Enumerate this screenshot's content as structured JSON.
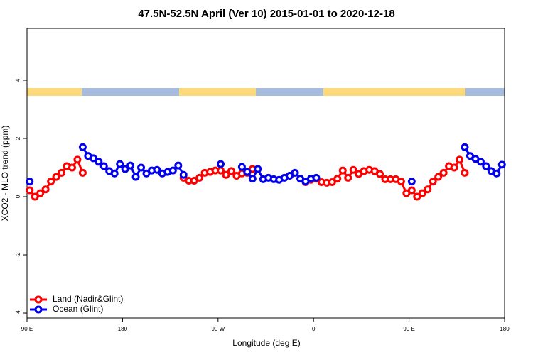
{
  "chart_data": {
    "type": "line",
    "title": "47.5N-52.5N April (Ver 10)   2015-01-01 to 2020-12-18",
    "xlabel": "Longitude (deg E)",
    "ylabel": "XCO2 - MLO trend (ppm)",
    "x": [
      92.5,
      97.5,
      102.5,
      107.5,
      112.5,
      117.5,
      122.5,
      127.5,
      132.5,
      137.5,
      142.5,
      147.5,
      152.5,
      157.5,
      162.5,
      167.5,
      172.5,
      177.5,
      182.5,
      187.5,
      192.5,
      197.5,
      202.5,
      207.5,
      212.5,
      217.5,
      222.5,
      227.5,
      232.5,
      237.5,
      242.5,
      247.5,
      252.5,
      257.5,
      262.5,
      267.5,
      272.5,
      277.5,
      282.5,
      287.5,
      292.5,
      297.5,
      302.5,
      307.5,
      312.5,
      317.5,
      322.5,
      327.5,
      332.5,
      337.5,
      342.5,
      347.5,
      352.5,
      357.5,
      362.5,
      367.5,
      372.5,
      377.5,
      382.5,
      387.5,
      392.5,
      397.5,
      402.5,
      407.5,
      412.5,
      417.5,
      422.5,
      427.5,
      432.5,
      437.5,
      442.5,
      447.5,
      452.5,
      457.5,
      462.5,
      467.5,
      472.5,
      477.5,
      482.5,
      487.5,
      492.5,
      497.5,
      502.5,
      507.5,
      512.5,
      517.5,
      522.5,
      527.5,
      532.5,
      537.5
    ],
    "series": [
      {
        "name": "Land (Nadir&Glint)",
        "color": "#ff0000",
        "values": [
          0.22,
          0.0,
          0.12,
          0.25,
          0.52,
          0.68,
          0.82,
          1.05,
          1.0,
          1.27,
          0.82,
          null,
          null,
          null,
          null,
          null,
          null,
          null,
          null,
          null,
          null,
          null,
          null,
          null,
          null,
          null,
          null,
          null,
          null,
          0.65,
          0.55,
          0.55,
          0.65,
          0.82,
          0.85,
          0.9,
          0.9,
          0.75,
          0.88,
          0.72,
          0.8,
          0.82,
          0.95,
          null,
          null,
          null,
          null,
          null,
          null,
          null,
          null,
          null,
          0.5,
          0.58,
          0.62,
          0.5,
          0.48,
          0.5,
          0.62,
          0.9,
          0.65,
          0.92,
          0.78,
          0.88,
          0.92,
          0.88,
          0.78,
          0.6,
          0.6,
          0.6,
          0.52,
          0.12,
          0.22,
          0.0,
          0.12,
          0.25,
          0.52,
          0.68,
          0.82,
          1.05,
          1.0,
          1.27,
          0.82,
          null,
          null,
          null,
          null,
          null,
          null,
          null
        ]
      },
      {
        "name": "Ocean (Glint)",
        "color": "#0000ee",
        "values": [
          0.52,
          null,
          null,
          null,
          null,
          null,
          null,
          null,
          null,
          null,
          1.7,
          1.4,
          1.32,
          1.2,
          1.05,
          0.88,
          0.8,
          1.12,
          0.95,
          1.07,
          0.68,
          1.0,
          0.8,
          0.9,
          0.92,
          0.8,
          0.85,
          0.9,
          1.07,
          0.75,
          null,
          null,
          null,
          null,
          null,
          null,
          1.12,
          null,
          null,
          null,
          1.02,
          0.85,
          0.62,
          0.95,
          0.6,
          0.65,
          0.6,
          0.58,
          0.65,
          0.72,
          0.82,
          0.62,
          0.52,
          0.62,
          0.65,
          null,
          null,
          null,
          null,
          null,
          null,
          null,
          null,
          null,
          null,
          null,
          null,
          null,
          null,
          null,
          null,
          null,
          0.52,
          null,
          null,
          null,
          null,
          null,
          null,
          null,
          null,
          null,
          1.7,
          1.4,
          1.3,
          1.2,
          1.05,
          0.88,
          0.8,
          1.1
        ]
      }
    ],
    "xlim": [
      90,
      540
    ],
    "xticks": [
      {
        "value": 90,
        "label": "90 E"
      },
      {
        "value": 180,
        "label": "180"
      },
      {
        "value": 270,
        "label": "90 W"
      },
      {
        "value": 360,
        "label": "0"
      },
      {
        "value": 450,
        "label": "90 E"
      },
      {
        "value": 540,
        "label": "180"
      }
    ],
    "ylim": [
      -4.17,
      5.78
    ],
    "yticks": [
      -4,
      -2,
      0,
      2,
      4
    ],
    "legend": "bottom-left"
  }
}
